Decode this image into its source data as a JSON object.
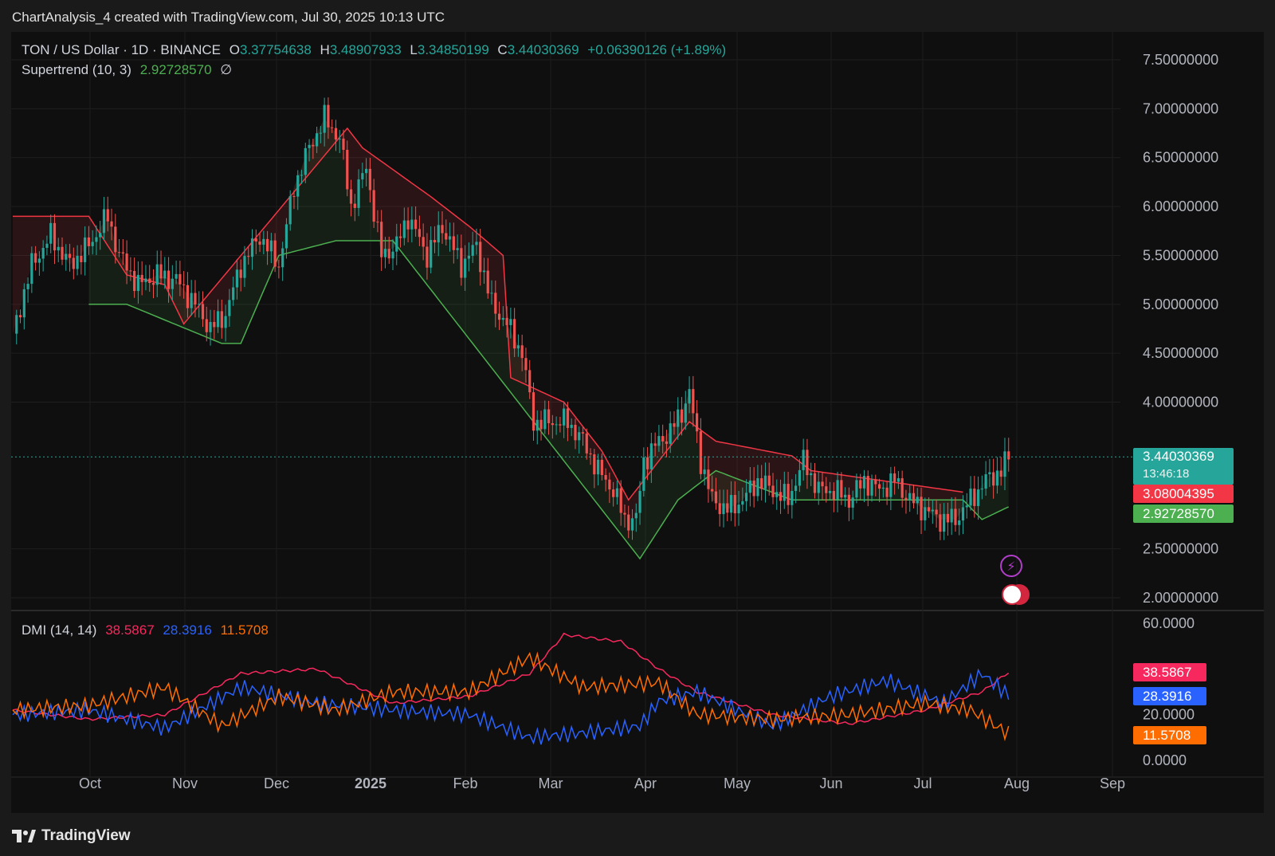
{
  "header": {
    "text": "ChartAnalysis_4 created with TradingView.com, Jul 30, 2025 10:13 UTC"
  },
  "legend": {
    "symbol": "TON / US Dollar · 1D · BINANCE",
    "o_label": "O",
    "o": "3.37754638",
    "h_label": "H",
    "h": "3.48907933",
    "l_label": "L",
    "l": "3.34850199",
    "c_label": "C",
    "c": "3.44030369",
    "change": "+0.06390126 (+1.89%)",
    "supertrend_label": "Supertrend (10, 3)",
    "supertrend_value": "2.92728570",
    "eye_icon": "∅",
    "dmi_label": "DMI (14, 14)",
    "dmi_adx": "38.5867",
    "dmi_plus": "28.3916",
    "dmi_minus": "11.5708"
  },
  "tags": {
    "price": "3.44030369",
    "countdown": "13:46:18",
    "supertrend_upper": "3.08004395",
    "supertrend_lower": "2.92728570",
    "adx": "38.5867",
    "plus_di": "28.3916",
    "minus_di": "11.5708"
  },
  "colors": {
    "up": "#26a69a",
    "down": "#ef5350",
    "st_up": "#4caf50",
    "st_down": "#f23645",
    "adx": "#f7285d",
    "plus_di": "#2962ff",
    "minus_di": "#ff6d00"
  },
  "chart_data": [
    {
      "type": "candlestick",
      "title": "TON / US Dollar · 1D · BINANCE",
      "y_ticks": [
        "2.00000000",
        "2.50000000",
        "4.00000000",
        "4.50000000",
        "5.00000000",
        "5.50000000",
        "6.00000000",
        "6.50000000",
        "7.00000000",
        "7.50000000"
      ],
      "ylim": [
        1.9,
        7.6
      ],
      "x_ticks": [
        "Oct",
        "Nov",
        "Dec",
        "2025",
        "Feb",
        "Mar",
        "Apr",
        "May",
        "Jun",
        "Jul",
        "Aug",
        "Sep"
      ],
      "close_path": [
        [
          0,
          4.7
        ],
        [
          5,
          5.4
        ],
        [
          10,
          5.7
        ],
        [
          15,
          5.4
        ],
        [
          20,
          5.6
        ],
        [
          25,
          5.9
        ],
        [
          28,
          5.5
        ],
        [
          33,
          5.2
        ],
        [
          38,
          5.3
        ],
        [
          43,
          5.25
        ],
        [
          48,
          5.0
        ],
        [
          52,
          4.75
        ],
        [
          56,
          4.9
        ],
        [
          60,
          5.4
        ],
        [
          65,
          5.7
        ],
        [
          70,
          5.4
        ],
        [
          74,
          6.2
        ],
        [
          78,
          6.6
        ],
        [
          82,
          6.9
        ],
        [
          86,
          6.7
        ],
        [
          89,
          6.0
        ],
        [
          93,
          6.4
        ],
        [
          97,
          5.5
        ],
        [
          101,
          5.6
        ],
        [
          104,
          5.9
        ],
        [
          109,
          5.5
        ],
        [
          113,
          5.8
        ],
        [
          118,
          5.4
        ],
        [
          122,
          5.6
        ],
        [
          126,
          5.0
        ],
        [
          130,
          4.8
        ],
        [
          134,
          4.5
        ],
        [
          137,
          3.8
        ],
        [
          142,
          3.8
        ],
        [
          146,
          3.8
        ],
        [
          150,
          3.6
        ],
        [
          154,
          3.3
        ],
        [
          158,
          3.1
        ],
        [
          161,
          2.8
        ],
        [
          164,
          2.8
        ],
        [
          166,
          3.4
        ],
        [
          170,
          3.6
        ],
        [
          173,
          3.7
        ],
        [
          176,
          3.9
        ],
        [
          178,
          4.1
        ],
        [
          181,
          3.4
        ],
        [
          184,
          3.0
        ],
        [
          188,
          2.9
        ],
        [
          192,
          3.0
        ],
        [
          196,
          3.2
        ],
        [
          200,
          3.1
        ],
        [
          204,
          3.0
        ],
        [
          208,
          3.4
        ],
        [
          212,
          3.1
        ],
        [
          216,
          3.1
        ],
        [
          220,
          3.0
        ],
        [
          224,
          3.2
        ],
        [
          228,
          3.1
        ],
        [
          232,
          3.2
        ],
        [
          236,
          3.0
        ],
        [
          240,
          2.9
        ],
        [
          244,
          2.8
        ],
        [
          248,
          2.8
        ],
        [
          252,
          3.0
        ],
        [
          256,
          3.2
        ],
        [
          260,
          3.3
        ],
        [
          262,
          3.44
        ]
      ],
      "supertrend": {
        "value": 2.9272857,
        "upper": [
          [
            0,
            5.9
          ],
          [
            20,
            5.9
          ],
          [
            30,
            5.3
          ],
          [
            40,
            5.2
          ],
          [
            45,
            4.8
          ],
          [
            88,
            6.8
          ],
          [
            92,
            6.6
          ],
          [
            110,
            6.1
          ],
          [
            120,
            5.8
          ],
          [
            129,
            5.5
          ],
          [
            131,
            4.25
          ],
          [
            145,
            4.0
          ],
          [
            155,
            3.5
          ],
          [
            162,
            3.0
          ],
          [
            178,
            3.8
          ],
          [
            185,
            3.6
          ],
          [
            205,
            3.45
          ],
          [
            210,
            3.3
          ],
          [
            250,
            3.08
          ]
        ],
        "lower": [
          [
            20,
            5.0
          ],
          [
            30,
            5.0
          ],
          [
            55,
            4.6
          ],
          [
            60,
            4.6
          ],
          [
            70,
            5.5
          ],
          [
            85,
            5.65
          ],
          [
            100,
            5.65
          ],
          [
            165,
            2.4
          ],
          [
            175,
            3.0
          ],
          [
            185,
            3.3
          ],
          [
            205,
            3.0
          ],
          [
            250,
            3.0
          ],
          [
            255,
            2.8
          ],
          [
            262,
            2.93
          ]
        ]
      },
      "last_price": 3.44030369
    },
    {
      "type": "line",
      "title": "DMI (14, 14)",
      "y_ticks": [
        "0.0000",
        "20.0000",
        "60.0000"
      ],
      "ylim": [
        0,
        60
      ],
      "series": [
        {
          "name": "ADX",
          "values": [
            [
              0,
              22
            ],
            [
              20,
              18
            ],
            [
              40,
              20
            ],
            [
              60,
              38
            ],
            [
              80,
              40
            ],
            [
              100,
              25
            ],
            [
              120,
              28
            ],
            [
              136,
              38
            ],
            [
              145,
              55
            ],
            [
              160,
              52
            ],
            [
              170,
              40
            ],
            [
              180,
              30
            ],
            [
              200,
              20
            ],
            [
              220,
              16
            ],
            [
              240,
              22
            ],
            [
              255,
              30
            ],
            [
              262,
              38.5867
            ]
          ]
        },
        {
          "name": "+DI",
          "values": [
            [
              0,
              20
            ],
            [
              20,
              22
            ],
            [
              40,
              14
            ],
            [
              60,
              32
            ],
            [
              80,
              25
            ],
            [
              100,
              22
            ],
            [
              120,
              20
            ],
            [
              136,
              10
            ],
            [
              150,
              12
            ],
            [
              165,
              15
            ],
            [
              170,
              26
            ],
            [
              180,
              30
            ],
            [
              200,
              15
            ],
            [
              215,
              28
            ],
            [
              230,
              35
            ],
            [
              245,
              25
            ],
            [
              255,
              38
            ],
            [
              262,
              28.3916
            ]
          ]
        },
        {
          "name": "-DI",
          "values": [
            [
              0,
              22
            ],
            [
              20,
              24
            ],
            [
              40,
              32
            ],
            [
              55,
              15
            ],
            [
              70,
              28
            ],
            [
              85,
              22
            ],
            [
              100,
              30
            ],
            [
              120,
              30
            ],
            [
              136,
              45
            ],
            [
              150,
              32
            ],
            [
              170,
              34
            ],
            [
              180,
              20
            ],
            [
              200,
              18
            ],
            [
              220,
              20
            ],
            [
              240,
              25
            ],
            [
              252,
              22
            ],
            [
              262,
              11.5708
            ]
          ]
        }
      ]
    }
  ]
}
